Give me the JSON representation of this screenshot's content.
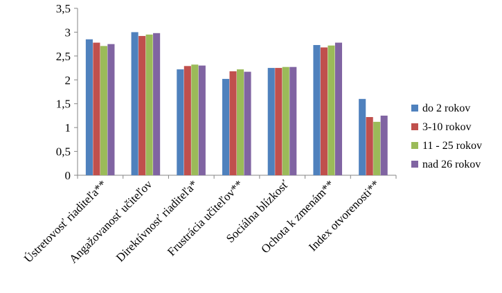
{
  "chart_data": {
    "type": "bar",
    "categories": [
      "Ústretovosť riaditeľa**",
      "Angažovanosť učiteľov",
      "Direktívnosť riaditeľa*",
      "Frustrácia učiteľov**",
      "Sociálna blízkosť",
      "Ochota k zmenám**",
      "Index otvorenosti**"
    ],
    "series": [
      {
        "name": "do 2 rokov",
        "color": "#4F81BD",
        "values": [
          2.85,
          3.0,
          2.22,
          2.02,
          2.25,
          2.73,
          1.6
        ]
      },
      {
        "name": "3-10 rokov",
        "color": "#C0504D",
        "values": [
          2.78,
          2.92,
          2.29,
          2.18,
          2.25,
          2.68,
          1.22
        ]
      },
      {
        "name": "11 - 25 rokov",
        "color": "#9BBB59",
        "values": [
          2.71,
          2.95,
          2.32,
          2.22,
          2.27,
          2.72,
          1.12
        ]
      },
      {
        "name": "nad 26 rokov",
        "color": "#8064A2",
        "values": [
          2.75,
          2.98,
          2.3,
          2.17,
          2.27,
          2.78,
          1.25
        ]
      }
    ],
    "y_ticks": [
      "0",
      "0,5",
      "1",
      "1,5",
      "2",
      "2,5",
      "3",
      "3,5"
    ],
    "ylim": [
      0,
      3.5
    ],
    "grid": false,
    "legend_position": "right"
  }
}
